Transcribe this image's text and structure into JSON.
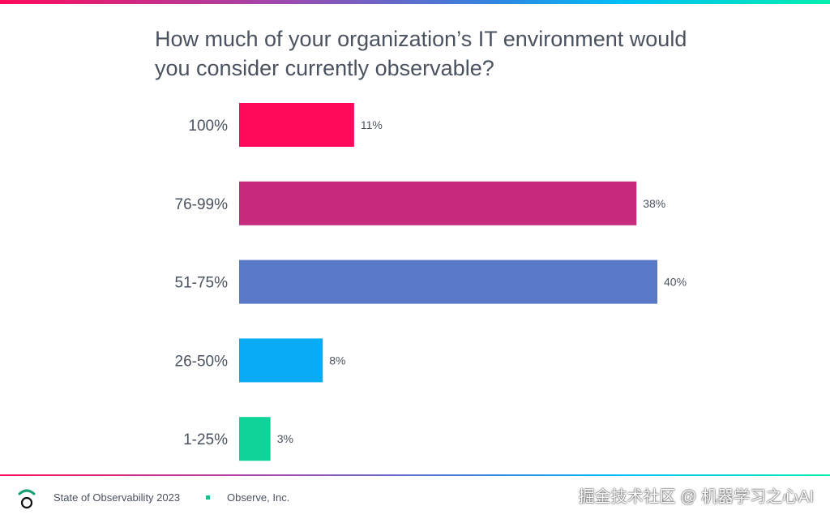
{
  "chart_data": {
    "type": "bar",
    "orientation": "horizontal",
    "title": "How much of your organization’s IT environment would you consider currently observable?",
    "categories": [
      "100%",
      "76-99%",
      "51-75%",
      "26-50%",
      "1-25%"
    ],
    "values": [
      11,
      38,
      40,
      8,
      3
    ],
    "data_labels": [
      "11%",
      "38%",
      "40%",
      "8%",
      "3%"
    ],
    "colors": [
      "#ff0a5a",
      "#c52a7c",
      "#5a78c8",
      "#0aabf5",
      "#0fd49a"
    ],
    "xlim": [
      0,
      40
    ],
    "grid": false
  },
  "footer": {
    "report": "State of Observability 2023",
    "company": "Observe, Inc.",
    "watermark": "掘金技术社区 @ 机器学习之心AI"
  }
}
